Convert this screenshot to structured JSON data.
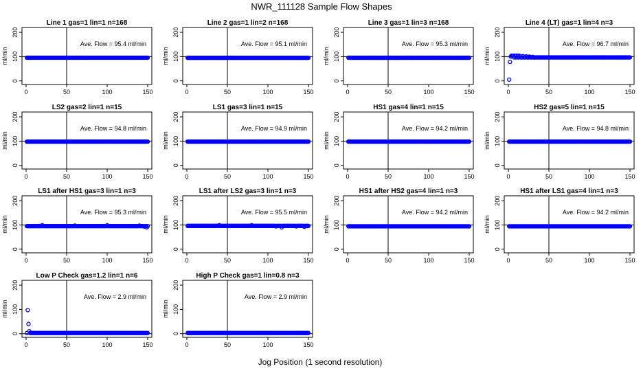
{
  "figure": {
    "title": "NWR_111128  Sample Flow Shapes",
    "xlabel": "Jog Position (1 second resolution)"
  },
  "chart_data": [
    {
      "type": "scatter",
      "title": "Line 1 gas=1 lin=1 n=168",
      "ylabel": "ml/min",
      "annotation": "Ave. Flow =  95.4  ml/min",
      "xlim": [
        0,
        150
      ],
      "ylim": [
        -15,
        220
      ],
      "xticks": [
        0,
        50,
        100,
        150
      ],
      "yticks": [
        0,
        100,
        200
      ],
      "xlines": [
        50
      ],
      "ylines": [
        100
      ],
      "color": "#0000ff",
      "series": [
        {
          "x_range": [
            1,
            150
          ],
          "y": 95.4
        }
      ]
    },
    {
      "type": "scatter",
      "title": "Line 2 gas=1 lin=2 n=168",
      "ylabel": "ml/min",
      "annotation": "Ave. Flow =  95.1  ml/min",
      "xlim": [
        0,
        150
      ],
      "ylim": [
        -15,
        220
      ],
      "xticks": [
        0,
        50,
        100,
        150
      ],
      "yticks": [
        0,
        100,
        200
      ],
      "xlines": [
        50
      ],
      "ylines": [
        100
      ],
      "color": "#0000ff",
      "series": [
        {
          "x_range": [
            1,
            150
          ],
          "y": 95.1
        }
      ]
    },
    {
      "type": "scatter",
      "title": "Line 3 gas=1 lin=3 n=168",
      "ylabel": "ml/min",
      "annotation": "Ave. Flow =  95.3  ml/min",
      "xlim": [
        0,
        150
      ],
      "ylim": [
        -15,
        220
      ],
      "xticks": [
        0,
        50,
        100,
        150
      ],
      "yticks": [
        0,
        100,
        200
      ],
      "xlines": [
        50
      ],
      "ylines": [
        100
      ],
      "color": "#0000ff",
      "series": [
        {
          "x_range": [
            1,
            150
          ],
          "y": 95.3
        }
      ]
    },
    {
      "type": "scatter",
      "title": "Line 4 (LT) gas=1 lin=4 n=3",
      "ylabel": "ml/min",
      "annotation": "Ave. Flow =  96.7  ml/min",
      "xlim": [
        0,
        150
      ],
      "ylim": [
        -15,
        220
      ],
      "xticks": [
        0,
        50,
        100,
        150
      ],
      "yticks": [
        0,
        100,
        200
      ],
      "xlines": [
        50
      ],
      "ylines": [
        100
      ],
      "color": "#0000ff",
      "series": [
        {
          "x_range": [
            1,
            150
          ],
          "y": 96.7,
          "outliers": [
            [
              1,
              5
            ],
            [
              2,
              78
            ],
            [
              3,
              100
            ],
            [
              4,
              104
            ],
            [
              5,
              104
            ],
            [
              6,
              104
            ],
            [
              8,
              104
            ],
            [
              10,
              104
            ],
            [
              12,
              104
            ],
            [
              14,
              103
            ],
            [
              18,
              102
            ],
            [
              22,
              101
            ],
            [
              26,
              100
            ],
            [
              30,
              99
            ]
          ]
        }
      ]
    },
    {
      "type": "scatter",
      "title": "LS2 gas=2 lin=1 n=15",
      "ylabel": "ml/min",
      "annotation": "Ave. Flow =  94.8  ml/min",
      "xlim": [
        0,
        150
      ],
      "ylim": [
        -15,
        220
      ],
      "xticks": [
        0,
        50,
        100,
        150
      ],
      "yticks": [
        0,
        100,
        200
      ],
      "xlines": [
        50
      ],
      "ylines": [
        100
      ],
      "color": "#0000ff",
      "series": [
        {
          "x_range": [
            1,
            150
          ],
          "y": 98
        }
      ]
    },
    {
      "type": "scatter",
      "title": "LS1 gas=3 lin=1 n=15",
      "ylabel": "ml/min",
      "annotation": "Ave. Flow =  94.9  ml/min",
      "xlim": [
        0,
        150
      ],
      "ylim": [
        -15,
        220
      ],
      "xticks": [
        0,
        50,
        100,
        150
      ],
      "yticks": [
        0,
        100,
        200
      ],
      "xlines": [
        50
      ],
      "ylines": [
        100
      ],
      "color": "#0000ff",
      "series": [
        {
          "x_range": [
            1,
            150
          ],
          "y": 98
        }
      ]
    },
    {
      "type": "scatter",
      "title": "HS1 gas=4 lin=1 n=15",
      "ylabel": "ml/min",
      "annotation": "Ave. Flow =  94.2  ml/min",
      "xlim": [
        0,
        150
      ],
      "ylim": [
        -15,
        220
      ],
      "xticks": [
        0,
        50,
        100,
        150
      ],
      "yticks": [
        0,
        100,
        200
      ],
      "xlines": [
        50
      ],
      "ylines": [
        100
      ],
      "color": "#0000ff",
      "series": [
        {
          "x_range": [
            1,
            150
          ],
          "y": 98
        }
      ]
    },
    {
      "type": "scatter",
      "title": "HS2 gas=5 lin=1 n=15",
      "ylabel": "ml/min",
      "annotation": "Ave. Flow =  94.8  ml/min",
      "xlim": [
        0,
        150
      ],
      "ylim": [
        -15,
        220
      ],
      "xticks": [
        0,
        50,
        100,
        150
      ],
      "yticks": [
        0,
        100,
        200
      ],
      "xlines": [
        50
      ],
      "ylines": [
        100
      ],
      "color": "#0000ff",
      "series": [
        {
          "x_range": [
            1,
            150
          ],
          "y": 98
        }
      ]
    },
    {
      "type": "scatter",
      "title": "LS1 after HS1 gas=3 lin=1 n=3",
      "ylabel": "ml/min",
      "annotation": "Ave. Flow =  95.3  ml/min",
      "xlim": [
        0,
        150
      ],
      "ylim": [
        -15,
        220
      ],
      "xticks": [
        0,
        50,
        100,
        150
      ],
      "yticks": [
        0,
        100,
        200
      ],
      "xlines": [
        50
      ],
      "ylines": [
        100
      ],
      "color": "#0000ff",
      "series": [
        {
          "x_range": [
            1,
            150
          ],
          "y": 95,
          "outliers": [
            [
              20,
              99
            ],
            [
              60,
              97
            ],
            [
              100,
              99
            ],
            [
              140,
              97
            ],
            [
              146,
              93
            ],
            [
              149,
              90
            ]
          ]
        }
      ]
    },
    {
      "type": "scatter",
      "title": "LS1 after LS2 gas=3 lin=1 n=3",
      "ylabel": "ml/min",
      "annotation": "Ave. Flow =  95.5  ml/min",
      "xlim": [
        0,
        150
      ],
      "ylim": [
        -15,
        220
      ],
      "xticks": [
        0,
        50,
        100,
        150
      ],
      "yticks": [
        0,
        100,
        200
      ],
      "xlines": [
        50
      ],
      "ylines": [
        100
      ],
      "color": "#0000ff",
      "series": [
        {
          "x_range": [
            1,
            150
          ],
          "y": 96,
          "outliers": [
            [
              40,
              99
            ],
            [
              80,
              99
            ],
            [
              110,
              94
            ],
            [
              117,
              90
            ],
            [
              135,
              94
            ],
            [
              145,
              92
            ]
          ]
        }
      ]
    },
    {
      "type": "scatter",
      "title": "HS1 after HS2 gas=4 lin=1 n=3",
      "ylabel": "ml/min",
      "annotation": "Ave. Flow =  94.2  ml/min",
      "xlim": [
        0,
        150
      ],
      "ylim": [
        -15,
        220
      ],
      "xticks": [
        0,
        50,
        100,
        150
      ],
      "yticks": [
        0,
        100,
        200
      ],
      "xlines": [
        50
      ],
      "ylines": [
        100
      ],
      "color": "#0000ff",
      "series": [
        {
          "x_range": [
            1,
            150
          ],
          "y": 94.2
        }
      ]
    },
    {
      "type": "scatter",
      "title": "HS1 after LS1 gas=4 lin=1 n=3",
      "ylabel": "ml/min",
      "annotation": "Ave. Flow =  94.2  ml/min",
      "xlim": [
        0,
        150
      ],
      "ylim": [
        -15,
        220
      ],
      "xticks": [
        0,
        50,
        100,
        150
      ],
      "yticks": [
        0,
        100,
        200
      ],
      "xlines": [
        50
      ],
      "ylines": [
        100
      ],
      "color": "#0000ff",
      "series": [
        {
          "x_range": [
            1,
            150
          ],
          "y": 94.2
        }
      ]
    },
    {
      "type": "scatter",
      "title": "Low P Check gas=1.2 lin=1 n=6",
      "ylabel": "ml/min",
      "annotation": "Ave. Flow =  2.9  ml/min",
      "xlim": [
        0,
        150
      ],
      "ylim": [
        -15,
        220
      ],
      "xticks": [
        0,
        50,
        100,
        150
      ],
      "yticks": [
        0,
        100,
        200
      ],
      "xlines": [
        50
      ],
      "ylines": [
        0
      ],
      "color": "#0000ff",
      "series": [
        {
          "x_range": [
            1,
            150
          ],
          "y": 2.9,
          "outliers": [
            [
              2,
              97
            ],
            [
              3,
              40
            ],
            [
              4,
              10
            ]
          ]
        }
      ]
    },
    {
      "type": "scatter",
      "title": "High P Check gas=1 lin=0.8 n=3",
      "ylabel": "ml/min",
      "annotation": "Ave. Flow =  2.9  ml/min",
      "xlim": [
        0,
        150
      ],
      "ylim": [
        -15,
        220
      ],
      "xticks": [
        0,
        50,
        100,
        150
      ],
      "yticks": [
        0,
        100,
        200
      ],
      "xlines": [
        50
      ],
      "ylines": [
        0
      ],
      "color": "#0000ff",
      "series": [
        {
          "x_range": [
            1,
            150
          ],
          "y": 2.9
        }
      ]
    }
  ]
}
